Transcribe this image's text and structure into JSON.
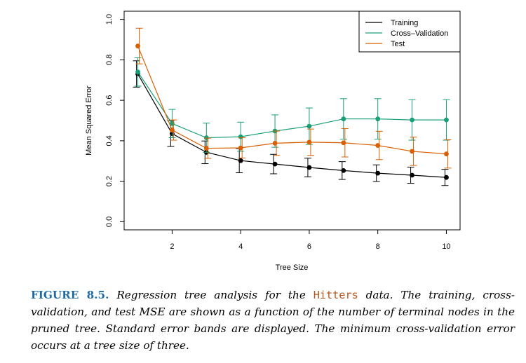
{
  "chart_data": {
    "type": "line",
    "title": "",
    "xlabel": "Tree Size",
    "ylabel": "Mean Squared Error",
    "xlim": [
      0.6,
      10.4
    ],
    "ylim": [
      -0.04,
      1.04
    ],
    "x_ticks": [
      2,
      4,
      6,
      8,
      10
    ],
    "y_ticks": [
      0.0,
      0.2,
      0.4,
      0.6,
      0.8,
      1.0
    ],
    "x_tick_labels": [
      "2",
      "4",
      "6",
      "8",
      "10"
    ],
    "y_tick_labels": [
      "0.0",
      "0.2",
      "0.4",
      "0.6",
      "0.8",
      "1.0"
    ],
    "grid": false,
    "legend_position": "top-right",
    "x": [
      1,
      2,
      3,
      4,
      5,
      6,
      7,
      8,
      9,
      10
    ],
    "series": [
      {
        "name": "Training",
        "color": "#000000",
        "values": [
          0.73,
          0.435,
          0.343,
          0.302,
          0.285,
          0.268,
          0.253,
          0.24,
          0.23,
          0.219
        ],
        "errors": [
          0.065,
          0.063,
          0.056,
          0.06,
          0.048,
          0.046,
          0.044,
          0.041,
          0.04,
          0.04
        ]
      },
      {
        "name": "Cross–Validation",
        "color": "#1a9e77",
        "values": [
          0.74,
          0.485,
          0.415,
          0.42,
          0.448,
          0.472,
          0.508,
          0.508,
          0.503,
          0.503
        ],
        "errors": [
          0.07,
          0.07,
          0.072,
          0.072,
          0.08,
          0.09,
          0.1,
          0.1,
          0.1,
          0.1
        ]
      },
      {
        "name": "Test",
        "color": "#d95f02",
        "values": [
          0.868,
          0.453,
          0.363,
          0.365,
          0.388,
          0.393,
          0.39,
          0.377,
          0.348,
          0.335
        ],
        "errors": [
          0.088,
          0.05,
          0.05,
          0.05,
          0.06,
          0.065,
          0.07,
          0.07,
          0.07,
          0.07
        ]
      }
    ]
  },
  "caption": {
    "figure_label": "FIGURE 8.5.",
    "text_before_code": " Regression tree analysis for the ",
    "code_word": "Hitters",
    "text_after_code": " data. The training, cross-validation, and test MSE are shown as a function of the number of terminal nodes in the pruned tree. Standard error bands are displayed. The minimum cross-validation error occurs at a tree size of three."
  }
}
